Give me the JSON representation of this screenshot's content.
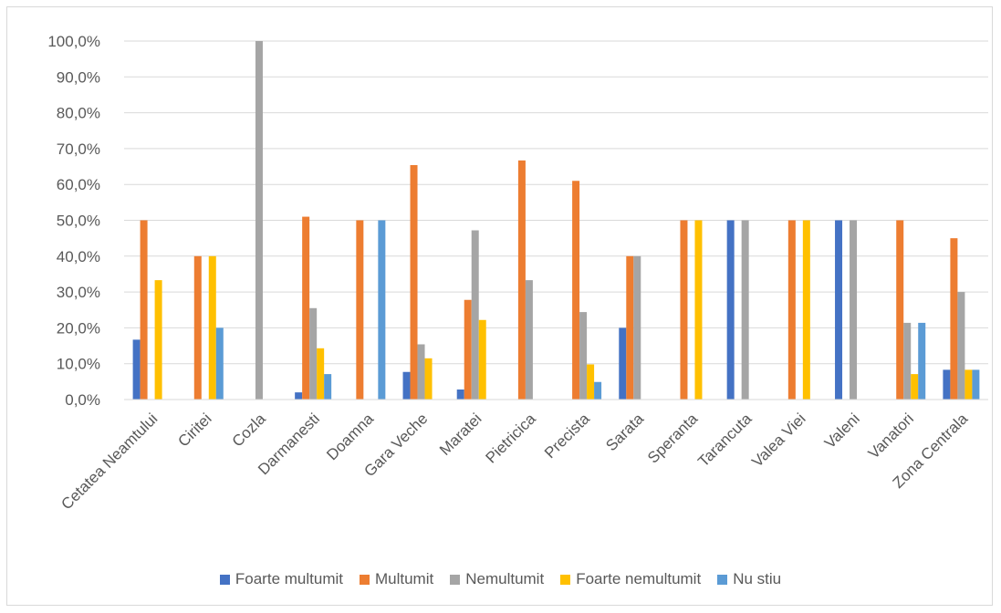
{
  "chart_data": {
    "type": "bar",
    "title": "",
    "xlabel": "",
    "ylabel": "",
    "ylim": [
      0,
      100
    ],
    "yticks": [
      "0,0%",
      "10,0%",
      "20,0%",
      "30,0%",
      "40,0%",
      "50,0%",
      "60,0%",
      "70,0%",
      "80,0%",
      "90,0%",
      "100,0%"
    ],
    "grid": true,
    "legend_position": "bottom",
    "categories": [
      "Cetatea Neamtului",
      "Ciritei",
      "Cozla",
      "Darmanesti",
      "Doamna",
      "Gara Veche",
      "Maratei",
      "Pietricica",
      "Precista",
      "Sarata",
      "Speranta",
      "Tarancuta",
      "Valea Viei",
      "Valeni",
      "Vanatori",
      "Zona Centrala"
    ],
    "series": [
      {
        "name": "Foarte multumit",
        "color": "#4472c4",
        "values": [
          16.7,
          0,
          0,
          2.0,
          0,
          7.7,
          2.8,
          0,
          0,
          20.0,
          0,
          50.0,
          0,
          50.0,
          0,
          8.3
        ]
      },
      {
        "name": "Multumit",
        "color": "#ed7d31",
        "values": [
          50.0,
          40.0,
          0,
          51.0,
          50.0,
          65.4,
          27.8,
          66.7,
          61.0,
          40.0,
          50.0,
          0,
          50.0,
          0,
          50.0,
          45.0
        ]
      },
      {
        "name": "Nemultumit",
        "color": "#a5a5a5",
        "values": [
          0,
          0,
          100.0,
          25.5,
          0,
          15.4,
          47.2,
          33.3,
          24.4,
          40.0,
          0,
          50.0,
          0,
          50.0,
          21.4,
          30.0
        ]
      },
      {
        "name": "Foarte nemultumit",
        "color": "#ffc000",
        "values": [
          33.3,
          40.0,
          0,
          14.3,
          0,
          11.5,
          22.2,
          0,
          9.8,
          0,
          50.0,
          0,
          50.0,
          0,
          7.1,
          8.3
        ]
      },
      {
        "name": "Nu stiu",
        "color": "#5b9bd5",
        "values": [
          0,
          20.0,
          0,
          7.1,
          50.0,
          0,
          0,
          0,
          4.9,
          0,
          0,
          0,
          0,
          0,
          21.4,
          8.3
        ]
      }
    ]
  }
}
